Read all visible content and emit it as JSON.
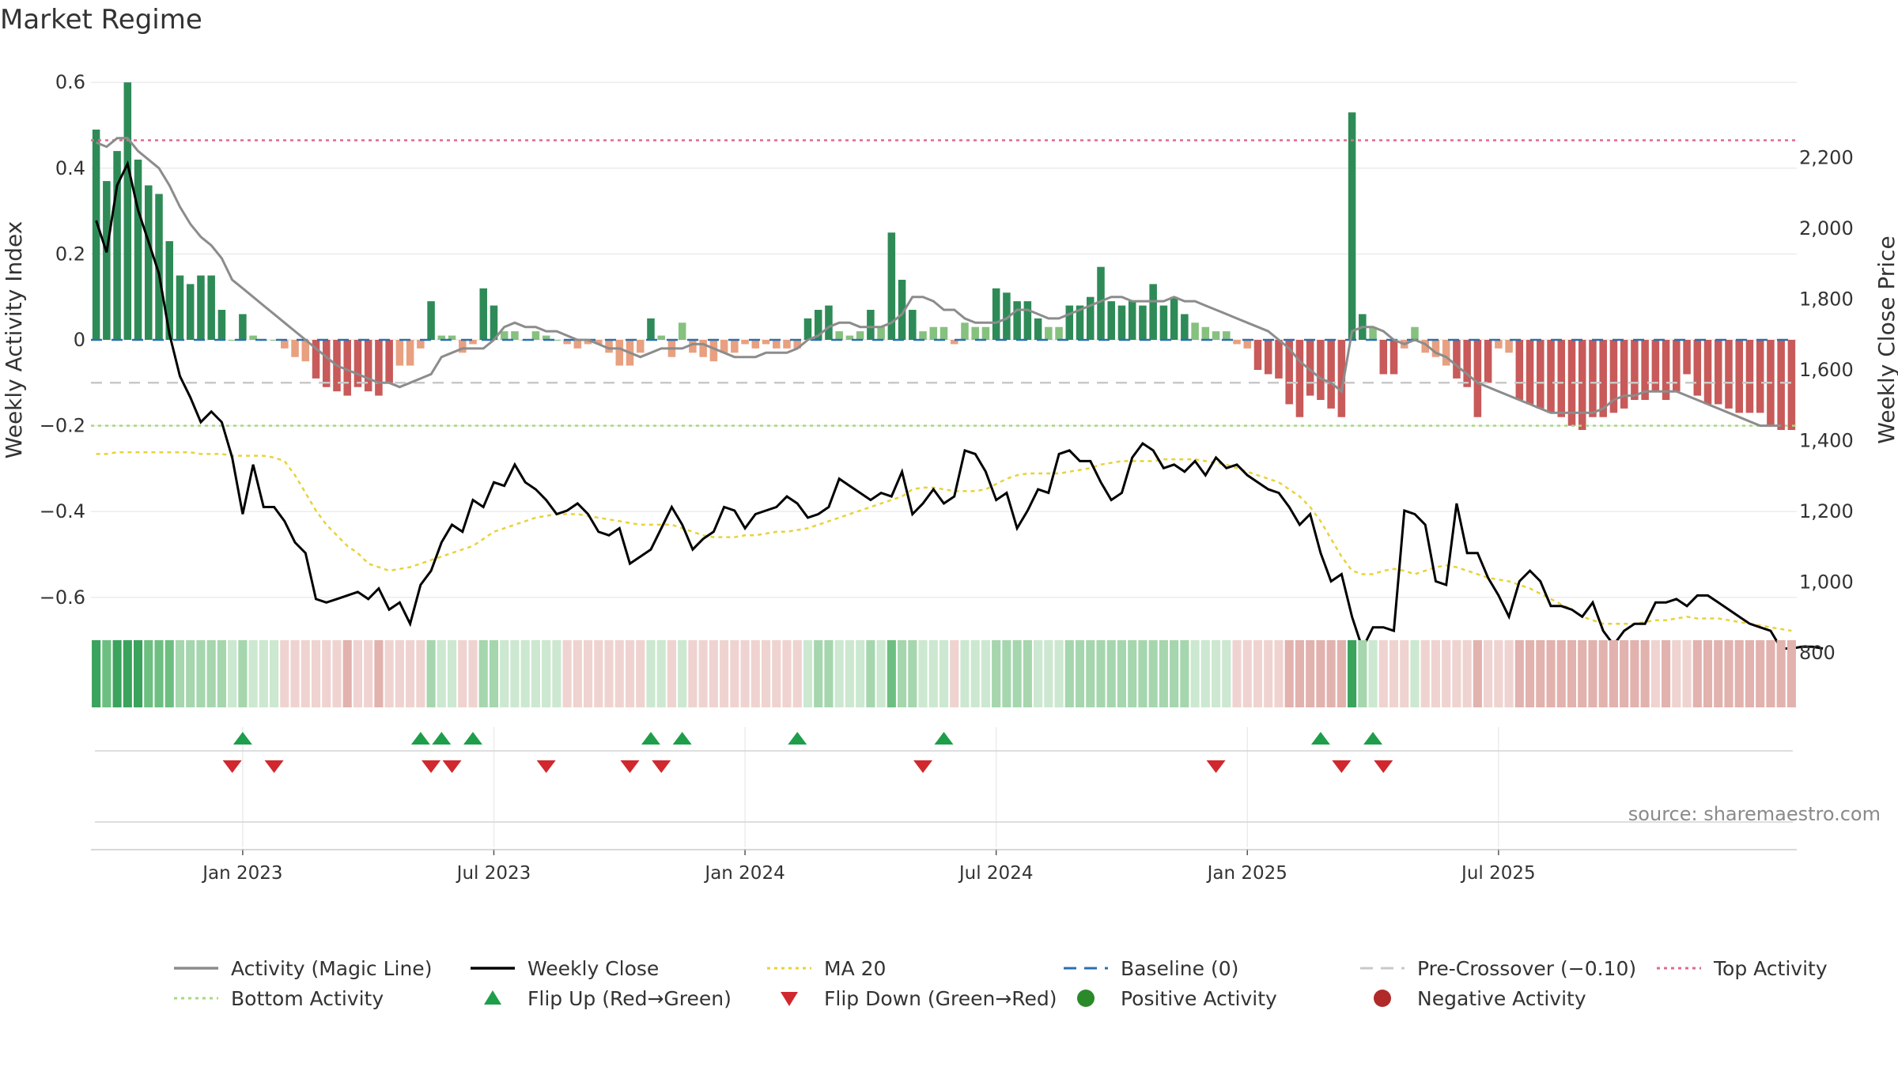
{
  "title": "Market Regime",
  "source": "source: sharemaestro.com",
  "chart_data": {
    "type": "bar",
    "title": "Market Regime",
    "ylabel_left": "Weekly Activity Index",
    "ylabel_right": "Weekly Close Price",
    "left_ylim": [
      -0.6,
      0.6
    ],
    "right_ylim": [
      800,
      2200
    ],
    "left_ticks": [
      0.6,
      0.4,
      0.2,
      0,
      -0.2,
      -0.4,
      -0.6
    ],
    "left_tick_labels": [
      "0.6",
      "0.4",
      "0.2",
      "0",
      "−0.2",
      "−0.4",
      "−0.6"
    ],
    "right_ticks": [
      2200,
      2000,
      1800,
      1600,
      1400,
      1200,
      1000,
      800
    ],
    "right_tick_labels": [
      "2,200",
      "2,000",
      "1,800",
      "1,600",
      "1,400",
      "1,200",
      "1,000",
      "800"
    ],
    "x_ticks": [
      "Jan 2023",
      "Jul 2023",
      "Jan 2024",
      "Jul 2024",
      "Jan 2025",
      "Jul 2025"
    ],
    "reference_lines": {
      "top_activity": 0.465,
      "bottom_activity": -0.2,
      "pre_crossover": -0.1,
      "baseline": 0
    },
    "series": [
      {
        "name": "Activity Index (bars)",
        "values": [
          0.49,
          0.37,
          0.44,
          0.6,
          0.42,
          0.36,
          0.34,
          0.23,
          0.15,
          0.13,
          0.15,
          0.15,
          0.07,
          0.0,
          0.06,
          0.01,
          0.0,
          0.0,
          -0.02,
          -0.04,
          -0.05,
          -0.09,
          -0.11,
          -0.12,
          -0.13,
          -0.11,
          -0.12,
          -0.13,
          -0.1,
          -0.06,
          -0.06,
          -0.02,
          0.09,
          0.01,
          0.01,
          -0.03,
          -0.01,
          0.12,
          0.08,
          0.02,
          0.02,
          0.0,
          0.02,
          0.01,
          0.0,
          -0.01,
          -0.02,
          -0.01,
          -0.01,
          -0.03,
          -0.06,
          -0.06,
          -0.03,
          0.05,
          0.01,
          -0.04,
          0.04,
          -0.03,
          -0.04,
          -0.05,
          -0.03,
          -0.03,
          -0.01,
          -0.02,
          -0.01,
          -0.02,
          -0.02,
          -0.02,
          0.05,
          0.07,
          0.08,
          0.02,
          0.01,
          0.02,
          0.07,
          0.03,
          0.25,
          0.14,
          0.07,
          0.02,
          0.03,
          0.03,
          -0.01,
          0.04,
          0.03,
          0.03,
          0.12,
          0.11,
          0.09,
          0.09,
          0.05,
          0.03,
          0.03,
          0.08,
          0.08,
          0.1,
          0.17,
          0.09,
          0.08,
          0.09,
          0.08,
          0.13,
          0.08,
          0.1,
          0.06,
          0.04,
          0.03,
          0.02,
          0.02,
          -0.01,
          -0.02,
          -0.07,
          -0.08,
          -0.09,
          -0.15,
          -0.18,
          -0.13,
          -0.14,
          -0.16,
          -0.18,
          0.53,
          0.06,
          0.03,
          -0.08,
          -0.08,
          -0.02,
          0.03,
          -0.03,
          -0.04,
          -0.06,
          -0.09,
          -0.11,
          -0.18,
          -0.1,
          -0.02,
          -0.03,
          -0.14,
          -0.15,
          -0.16,
          -0.17,
          -0.18,
          -0.2,
          -0.21,
          -0.18,
          -0.18,
          -0.17,
          -0.16,
          -0.14,
          -0.14,
          -0.12,
          -0.14,
          -0.12,
          -0.08,
          -0.13,
          -0.15,
          -0.15,
          -0.16,
          -0.17,
          -0.17,
          -0.17,
          -0.2,
          -0.21,
          -0.21
        ]
      },
      {
        "name": "Weekly Close",
        "values": [
          2020,
          1930,
          2120,
          2180,
          2050,
          1960,
          1870,
          1700,
          1580,
          1520,
          1450,
          1480,
          1450,
          1350,
          1190,
          1330,
          1210,
          1210,
          1170,
          1110,
          1080,
          950,
          940,
          950,
          960,
          970,
          950,
          980,
          920,
          940,
          880,
          990,
          1030,
          1110,
          1160,
          1140,
          1230,
          1210,
          1280,
          1270,
          1330,
          1280,
          1260,
          1230,
          1190,
          1200,
          1220,
          1190,
          1140,
          1130,
          1150,
          1050,
          1070,
          1090,
          1150,
          1210,
          1160,
          1090,
          1120,
          1140,
          1210,
          1200,
          1150,
          1190,
          1200,
          1210,
          1240,
          1220,
          1180,
          1190,
          1210,
          1290,
          1270,
          1250,
          1230,
          1250,
          1240,
          1310,
          1190,
          1220,
          1260,
          1220,
          1240,
          1370,
          1360,
          1310,
          1230,
          1250,
          1150,
          1200,
          1260,
          1250,
          1360,
          1370,
          1340,
          1340,
          1280,
          1230,
          1250,
          1350,
          1390,
          1370,
          1320,
          1330,
          1310,
          1340,
          1300,
          1350,
          1320,
          1330,
          1300,
          1280,
          1260,
          1250,
          1210,
          1160,
          1190,
          1080,
          1000,
          1020,
          900,
          810,
          870,
          870,
          860,
          1200,
          1190,
          1160,
          1000,
          990,
          1220,
          1080,
          1080,
          1010,
          960,
          900,
          1000,
          1030,
          1000,
          930,
          930,
          920,
          900,
          940,
          860,
          820,
          860,
          880,
          880,
          940,
          940,
          950,
          930,
          960,
          960,
          940,
          920,
          900,
          880,
          870,
          860,
          810,
          810,
          815,
          815,
          810
        ]
      },
      {
        "name": "Activity (Magic Line)",
        "values": [
          0.46,
          0.45,
          0.47,
          0.47,
          0.44,
          0.42,
          0.4,
          0.36,
          0.31,
          0.27,
          0.24,
          0.22,
          0.19,
          0.14,
          0.12,
          0.1,
          0.08,
          0.06,
          0.04,
          0.02,
          0.0,
          -0.02,
          -0.04,
          -0.06,
          -0.07,
          -0.08,
          -0.09,
          -0.1,
          -0.1,
          -0.11,
          -0.1,
          -0.09,
          -0.08,
          -0.04,
          -0.03,
          -0.02,
          -0.02,
          -0.02,
          0.0,
          0.03,
          0.04,
          0.03,
          0.03,
          0.02,
          0.02,
          0.01,
          0.0,
          0.0,
          -0.01,
          -0.02,
          -0.02,
          -0.03,
          -0.04,
          -0.03,
          -0.02,
          -0.02,
          -0.02,
          -0.01,
          -0.01,
          -0.02,
          -0.03,
          -0.04,
          -0.04,
          -0.04,
          -0.03,
          -0.03,
          -0.03,
          -0.02,
          0.0,
          0.01,
          0.03,
          0.04,
          0.04,
          0.03,
          0.03,
          0.03,
          0.04,
          0.06,
          0.1,
          0.1,
          0.09,
          0.07,
          0.07,
          0.05,
          0.04,
          0.04,
          0.04,
          0.05,
          0.07,
          0.07,
          0.06,
          0.05,
          0.05,
          0.06,
          0.07,
          0.08,
          0.09,
          0.1,
          0.1,
          0.09,
          0.09,
          0.09,
          0.09,
          0.1,
          0.09,
          0.09,
          0.08,
          0.07,
          0.06,
          0.05,
          0.04,
          0.03,
          0.02,
          0.0,
          -0.02,
          -0.05,
          -0.07,
          -0.09,
          -0.1,
          -0.12,
          0.02,
          0.03,
          0.03,
          0.02,
          0.0,
          -0.01,
          0.0,
          -0.01,
          -0.03,
          -0.04,
          -0.06,
          -0.08,
          -0.1,
          -0.11,
          -0.12,
          -0.13,
          -0.14,
          -0.15,
          -0.16,
          -0.17,
          -0.17,
          -0.17,
          -0.17,
          -0.17,
          -0.16,
          -0.14,
          -0.13,
          -0.13,
          -0.12,
          -0.12,
          -0.12,
          -0.12,
          -0.13,
          -0.14,
          -0.15,
          -0.16,
          -0.17,
          -0.18,
          -0.19,
          -0.2,
          -0.2,
          -0.2
        ]
      },
      {
        "name": "MA 20",
        "values": [
          1360,
          1360,
          1365,
          1365,
          1365,
          1365,
          1365,
          1365,
          1365,
          1365,
          1360,
          1360,
          1360,
          1355,
          1355,
          1355,
          1355,
          1350,
          1340,
          1300,
          1250,
          1200,
          1160,
          1130,
          1100,
          1080,
          1050,
          1040,
          1030,
          1035,
          1040,
          1050,
          1060,
          1070,
          1080,
          1090,
          1100,
          1120,
          1140,
          1150,
          1160,
          1170,
          1180,
          1185,
          1190,
          1190,
          1190,
          1185,
          1180,
          1175,
          1170,
          1165,
          1160,
          1160,
          1160,
          1160,
          1150,
          1140,
          1130,
          1125,
          1125,
          1125,
          1130,
          1130,
          1135,
          1140,
          1140,
          1145,
          1150,
          1160,
          1170,
          1180,
          1190,
          1200,
          1210,
          1220,
          1230,
          1240,
          1260,
          1265,
          1265,
          1260,
          1255,
          1255,
          1255,
          1260,
          1275,
          1290,
          1300,
          1305,
          1305,
          1305,
          1305,
          1310,
          1315,
          1320,
          1330,
          1335,
          1340,
          1340,
          1340,
          1340,
          1345,
          1345,
          1345,
          1345,
          1340,
          1335,
          1330,
          1320,
          1310,
          1300,
          1290,
          1280,
          1260,
          1240,
          1210,
          1170,
          1120,
          1070,
          1030,
          1020,
          1020,
          1030,
          1035,
          1030,
          1020,
          1030,
          1040,
          1045,
          1040,
          1030,
          1020,
          1010,
          1005,
          1000,
          990,
          980,
          965,
          950,
          935,
          920,
          900,
          890,
          880,
          880,
          880,
          880,
          885,
          890,
          890,
          895,
          900,
          895,
          895,
          895,
          890,
          885,
          880,
          875,
          870,
          865,
          860
        ]
      }
    ],
    "flips_up_weeks": [
      14,
      31,
      33,
      36,
      53,
      56,
      67,
      81,
      117,
      122
    ],
    "flips_down_weeks": [
      13,
      17,
      32,
      34,
      43,
      51,
      54,
      79,
      107,
      119,
      123
    ]
  },
  "legend": [
    {
      "label": "Activity (Magic Line)",
      "icon": "line",
      "color": "#8c8c8c"
    },
    {
      "label": "Weekly Close",
      "icon": "line",
      "color": "#000000"
    },
    {
      "label": "MA 20",
      "icon": "dotted",
      "color": "#e8d23a"
    },
    {
      "label": "Baseline (0)",
      "icon": "dashed",
      "color": "#2a6fb0"
    },
    {
      "label": "Pre-Crossover (−0.10)",
      "icon": "dashed",
      "color": "#c8c8c8"
    },
    {
      "label": "Top Activity",
      "icon": "dotted",
      "color": "#e06a8c"
    },
    {
      "label": "Bottom Activity",
      "icon": "dotted",
      "color": "#a8d880"
    },
    {
      "label": "Flip Up (Red→Green)",
      "icon": "triangle-up",
      "color": "#1e9e4a"
    },
    {
      "label": "Flip Down (Green→Red)",
      "icon": "triangle-down",
      "color": "#d0282e"
    },
    {
      "label": "Positive Activity",
      "icon": "circle",
      "color": "#2a8a2a"
    },
    {
      "label": "Negative Activity",
      "icon": "circle",
      "color": "#b02a2a"
    }
  ],
  "colors": {
    "strong_green": "#2e8b57",
    "light_green": "#86c17f",
    "strong_red": "#c85a5a",
    "light_red": "#e8a080"
  }
}
